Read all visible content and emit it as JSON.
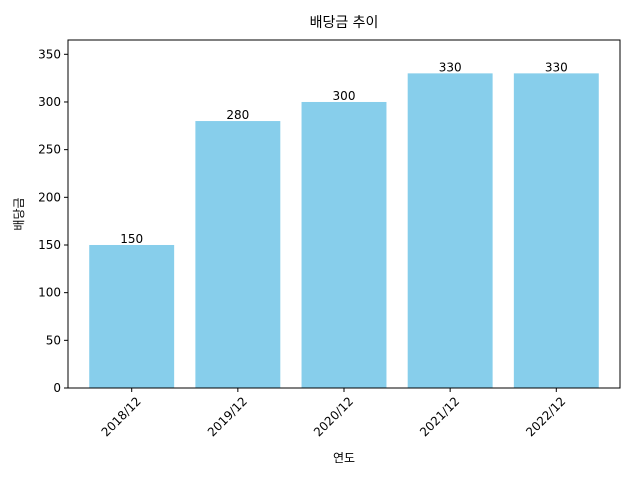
{
  "chart_data": {
    "type": "bar",
    "title": "배당금 추이",
    "xlabel": "연도",
    "ylabel": "배당금",
    "categories": [
      "2018/12",
      "2019/12",
      "2020/12",
      "2021/12",
      "2022/12"
    ],
    "values": [
      150,
      280,
      300,
      330,
      330
    ],
    "data_labels": [
      "150",
      "280",
      "300",
      "330",
      "330"
    ],
    "ylim": [
      0,
      365
    ],
    "yticks": [
      0,
      50,
      100,
      150,
      200,
      250,
      300,
      350
    ],
    "ytick_labels": [
      "0",
      "50",
      "100",
      "150",
      "200",
      "250",
      "300",
      "350"
    ],
    "bar_color": "#87CEEB",
    "grid": false,
    "legend": false,
    "xtick_rotation": 45
  }
}
